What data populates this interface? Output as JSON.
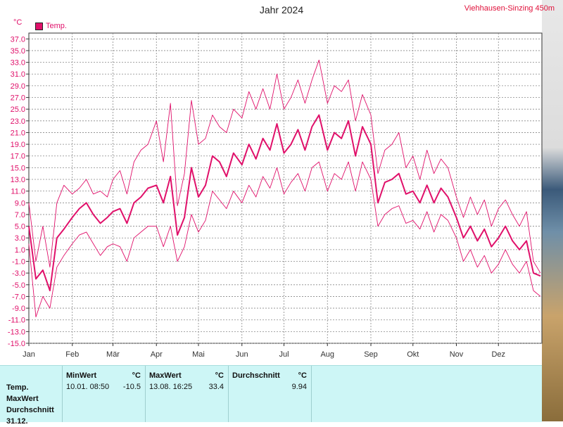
{
  "header": {
    "title": "Jahr 2024",
    "station": "Viehhausen-Sinzing 450m",
    "unit": "°C",
    "legend_label": "Temp."
  },
  "chart_data": {
    "type": "line",
    "title": "Jahr 2024",
    "ylabel": "°C",
    "ylim": [
      -15,
      38
    ],
    "grid": true,
    "legend": "top-left",
    "yticks": [
      "37.0",
      "35.0",
      "33.0",
      "31.0",
      "29.0",
      "27.0",
      "25.0",
      "23.0",
      "21.0",
      "19.0",
      "17.0",
      "15.0",
      "13.0",
      "11.0",
      "9.0",
      "7.0",
      "5.0",
      "3.0",
      "1.0",
      "-1.0",
      "-3.0",
      "-5.0",
      "-7.0",
      "-9.0",
      "-11.0",
      "-13.0",
      "-15.0"
    ],
    "months": [
      "Jan",
      "Feb",
      "Mär",
      "Apr",
      "Mai",
      "Jun",
      "Jul",
      "Aug",
      "Sep",
      "Okt",
      "Nov",
      "Dez"
    ],
    "series": [
      {
        "name": "Temp.",
        "color": "#e0106a",
        "x": [
          0,
          5,
          10,
          15,
          20,
          25,
          31,
          36,
          41,
          46,
          51,
          56,
          60,
          65,
          70,
          75,
          80,
          85,
          91,
          96,
          101,
          106,
          111,
          116,
          121,
          126,
          131,
          136,
          141,
          146,
          152,
          157,
          162,
          167,
          172,
          177,
          182,
          187,
          192,
          197,
          202,
          207,
          213,
          218,
          223,
          228,
          233,
          238,
          244,
          249,
          254,
          259,
          264,
          269,
          274,
          279,
          284,
          289,
          294,
          299,
          305,
          310,
          315,
          320,
          325,
          330,
          335,
          340,
          345,
          350,
          355,
          360,
          365
        ],
        "mean": [
          5.0,
          -4.0,
          -2.5,
          -6.0,
          3.0,
          4.5,
          6.5,
          8.0,
          9.0,
          7.0,
          5.5,
          6.5,
          7.5,
          8.0,
          5.5,
          9.0,
          10.0,
          11.5,
          12.0,
          9.0,
          13.5,
          3.5,
          6.5,
          15.0,
          10.0,
          12.0,
          17.0,
          16.0,
          13.5,
          17.5,
          15.5,
          19.0,
          16.5,
          20.0,
          18.0,
          22.5,
          17.5,
          19.0,
          21.5,
          18.0,
          22.0,
          24.0,
          18.0,
          21.0,
          20.0,
          23.0,
          17.0,
          22.0,
          19.0,
          9.0,
          12.5,
          13.0,
          14.0,
          10.5,
          11.0,
          9.0,
          12.0,
          9.0,
          11.5,
          10.0,
          6.5,
          3.0,
          5.0,
          2.5,
          4.5,
          1.5,
          3.0,
          5.0,
          2.5,
          1.0,
          2.5,
          -3.0,
          -3.5
        ],
        "max": [
          9.0,
          -1.0,
          5.0,
          -2.0,
          9.0,
          12.0,
          10.5,
          11.5,
          13.0,
          10.5,
          11.0,
          10.0,
          13.0,
          14.5,
          10.5,
          16.0,
          18.0,
          19.0,
          23.0,
          16.0,
          26.0,
          8.5,
          14.0,
          26.5,
          19.0,
          20.0,
          24.0,
          22.0,
          21.0,
          25.0,
          23.5,
          28.0,
          25.0,
          28.5,
          25.0,
          31.0,
          25.0,
          27.0,
          30.0,
          26.0,
          30.0,
          33.4,
          26.0,
          29.0,
          28.0,
          30.0,
          23.0,
          27.5,
          24.0,
          14.0,
          18.0,
          19.0,
          21.0,
          15.0,
          17.0,
          13.0,
          18.0,
          14.0,
          16.5,
          15.0,
          10.0,
          6.5,
          10.0,
          7.0,
          9.5,
          5.0,
          8.0,
          9.5,
          7.0,
          5.0,
          7.5,
          -1.0,
          -3.0
        ],
        "min": [
          2.0,
          -10.5,
          -7.0,
          -9.0,
          -2.0,
          0.0,
          2.0,
          3.5,
          4.0,
          2.0,
          0.0,
          1.5,
          2.0,
          1.5,
          -1.0,
          3.0,
          4.0,
          5.0,
          5.0,
          1.5,
          5.0,
          -1.0,
          1.5,
          7.0,
          4.0,
          6.0,
          11.0,
          9.5,
          8.0,
          11.0,
          9.0,
          12.0,
          10.0,
          13.5,
          11.5,
          15.0,
          10.5,
          12.5,
          14.0,
          11.0,
          15.0,
          16.0,
          11.0,
          14.0,
          13.0,
          16.0,
          11.0,
          16.0,
          13.0,
          5.0,
          7.0,
          8.0,
          8.5,
          5.5,
          6.0,
          4.5,
          7.5,
          4.0,
          7.0,
          6.0,
          3.0,
          -1.0,
          1.0,
          -2.0,
          0.0,
          -3.0,
          -1.5,
          1.0,
          -1.5,
          -3.0,
          -1.0,
          -6.0,
          -7.0
        ]
      }
    ]
  },
  "stats": {
    "row_labels": [
      "Temp.",
      "MaxWert",
      "Durchschnitt",
      "31.12."
    ],
    "min": {
      "header": "MinWert",
      "unit": "°C",
      "time": "10.01.  08:50",
      "value": "-10.5"
    },
    "max": {
      "header": "MaxWert",
      "unit": "°C",
      "time": "13.08.  16:25",
      "value": "33.4"
    },
    "avg": {
      "header": "Durchschnitt",
      "unit": "°C",
      "value": "9.94"
    }
  }
}
